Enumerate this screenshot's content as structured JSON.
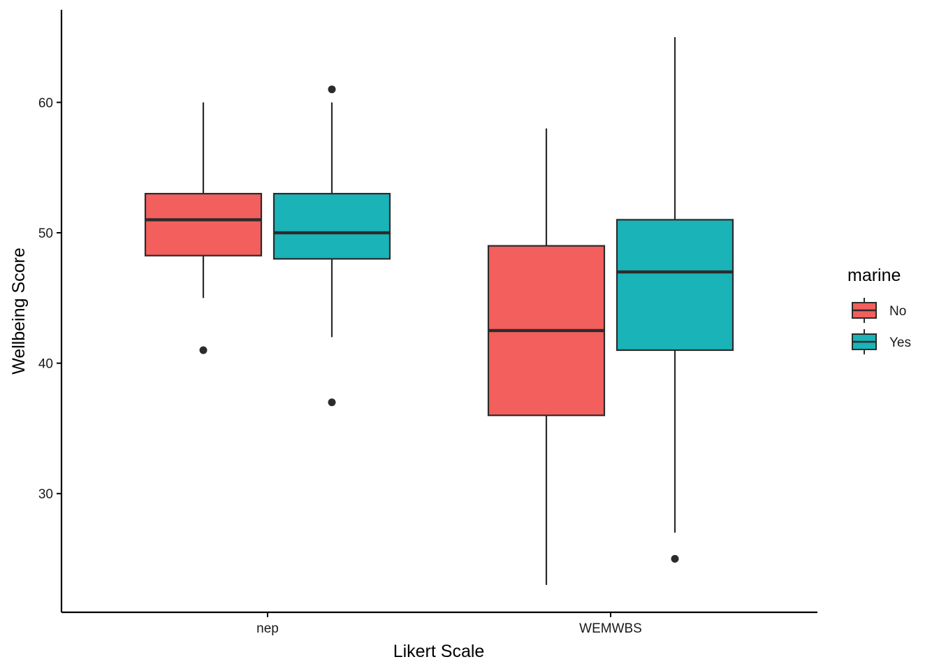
{
  "chart_data": {
    "type": "box",
    "title": "",
    "xlabel": "Likert Scale",
    "ylabel": "Wellbeing Score",
    "ylim": [
      20.9,
      67.1
    ],
    "y_ticks": [
      30,
      40,
      50,
      60
    ],
    "y_tick_labels": [
      "30",
      "40",
      "50",
      "60"
    ],
    "categories": [
      "nep",
      "WEMWBS"
    ],
    "grid": false,
    "legend": {
      "title": "marine",
      "position": "right",
      "entries": [
        {
          "label": "No",
          "color": "#F25F5C"
        },
        {
          "label": "Yes",
          "color": "#19B3B8"
        }
      ]
    },
    "series": [
      {
        "name": "No",
        "color": "#F25F5C",
        "boxes": [
          {
            "category": "nep",
            "whisker_low": 45,
            "q1": 48.25,
            "median": 51,
            "q3": 53,
            "whisker_high": 60,
            "outliers": [
              41
            ]
          },
          {
            "category": "WEMWBS",
            "whisker_low": 23,
            "q1": 36,
            "median": 42.5,
            "q3": 49,
            "whisker_high": 58,
            "outliers": []
          }
        ]
      },
      {
        "name": "Yes",
        "color": "#19B3B8",
        "boxes": [
          {
            "category": "nep",
            "whisker_low": 42,
            "q1": 48,
            "median": 50,
            "q3": 53,
            "whisker_high": 60,
            "outliers": [
              61,
              37
            ]
          },
          {
            "category": "WEMWBS",
            "whisker_low": 27,
            "q1": 41,
            "median": 47,
            "q3": 51,
            "whisker_high": 65,
            "outliers": [
              25
            ]
          }
        ]
      }
    ]
  }
}
